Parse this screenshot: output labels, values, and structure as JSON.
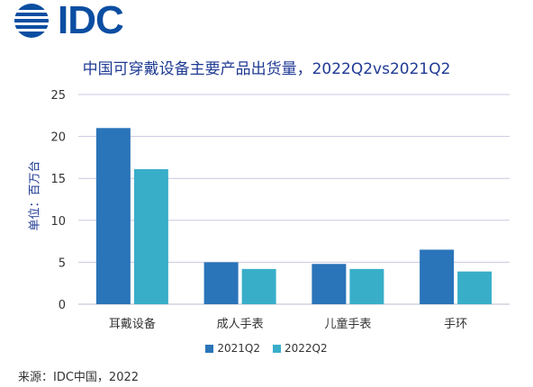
{
  "logo": {
    "text": "IDC"
  },
  "chart_data": {
    "type": "bar",
    "title": "中国可穿戴设备主要产品出货量，2022Q2vs2021Q2",
    "xlabel": "",
    "ylabel": "单位：百万台",
    "ylim": [
      0,
      25
    ],
    "yticks": [
      0,
      5,
      10,
      15,
      20,
      25
    ],
    "grid": true,
    "legend_position": "bottom",
    "categories": [
      "耳戴设备",
      "成人手表",
      "儿童手表",
      "手环"
    ],
    "series": [
      {
        "name": "2021Q2",
        "color": "#2a74b9",
        "values": [
          21.0,
          5.0,
          4.8,
          6.5
        ]
      },
      {
        "name": "2022Q2",
        "color": "#39aec9",
        "values": [
          16.1,
          4.2,
          4.2,
          3.9
        ]
      }
    ]
  },
  "source": "来源：IDC中国，2022"
}
